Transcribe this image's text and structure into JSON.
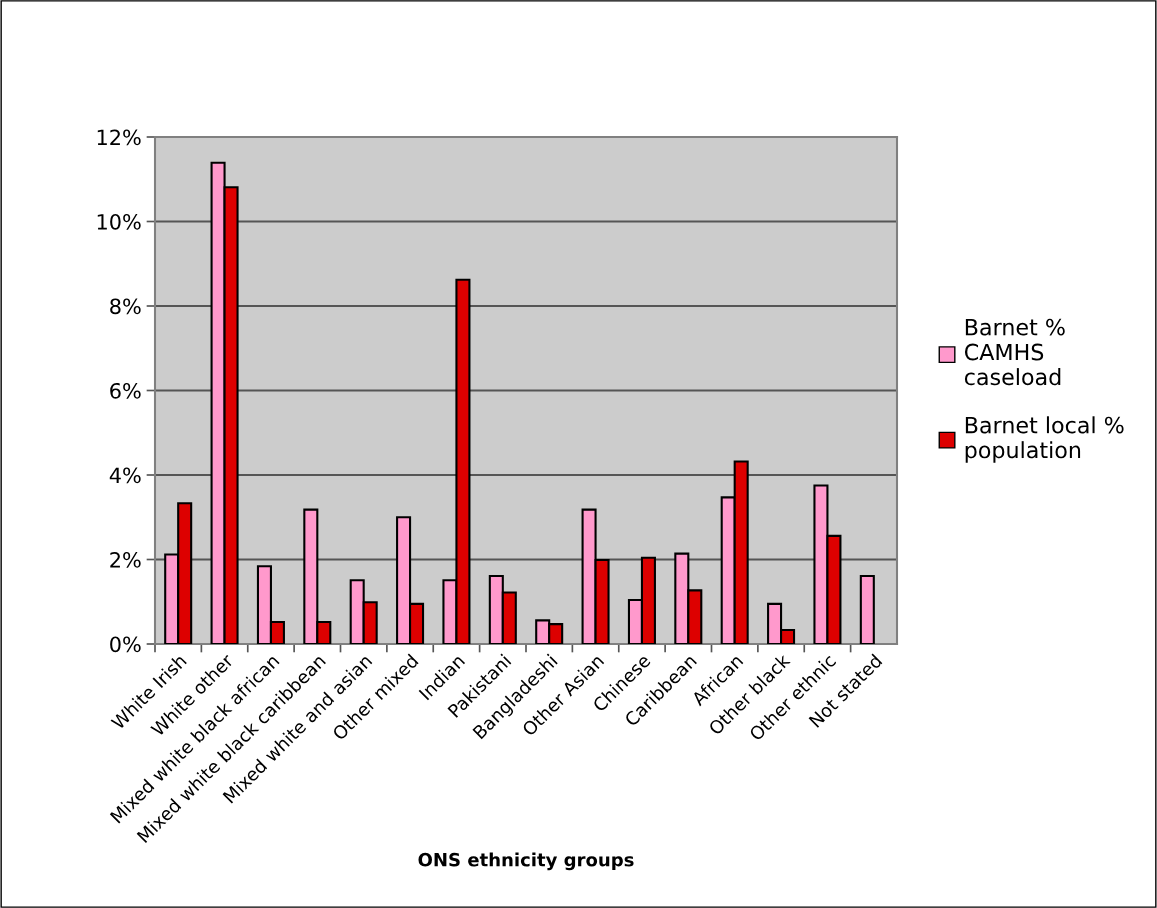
{
  "chart_data": {
    "type": "bar",
    "xlabel": "ONS ethnicity groups",
    "categories": [
      "White Irish",
      "White other",
      "Mixed white black african",
      "Mixed white black caribbean",
      "Mixed white and asian",
      "Other mixed",
      "Indian",
      "Pakistani",
      "Bangladeshi",
      "Other Asian",
      "Chinese",
      "Caribbean",
      "African",
      "Other black",
      "Other ethnic",
      "Not stated"
    ],
    "series": [
      {
        "name": "Barnet %\nCAMHS\ncaseload",
        "color": "#ff99cc",
        "values": [
          2.12,
          11.39,
          1.84,
          3.18,
          1.51,
          3.0,
          1.51,
          1.61,
          0.56,
          3.18,
          1.04,
          2.14,
          3.47,
          0.95,
          3.75,
          1.61
        ]
      },
      {
        "name": "Barnet local %\npopulation",
        "color": "#dd0000",
        "values": [
          3.33,
          10.81,
          0.52,
          0.52,
          0.99,
          0.95,
          8.62,
          1.22,
          0.47,
          1.99,
          2.04,
          1.27,
          4.32,
          0.33,
          2.56,
          null
        ]
      }
    ],
    "ylim": [
      0,
      12
    ],
    "yticks": [
      {
        "value": 0,
        "label": "0%"
      },
      {
        "value": 2,
        "label": "2%"
      },
      {
        "value": 4,
        "label": "4%"
      },
      {
        "value": 6,
        "label": "6%"
      },
      {
        "value": 8,
        "label": "8%"
      },
      {
        "value": 10,
        "label": "10%"
      },
      {
        "value": 12,
        "label": "12%"
      }
    ],
    "grid": "y",
    "legend": "right"
  }
}
